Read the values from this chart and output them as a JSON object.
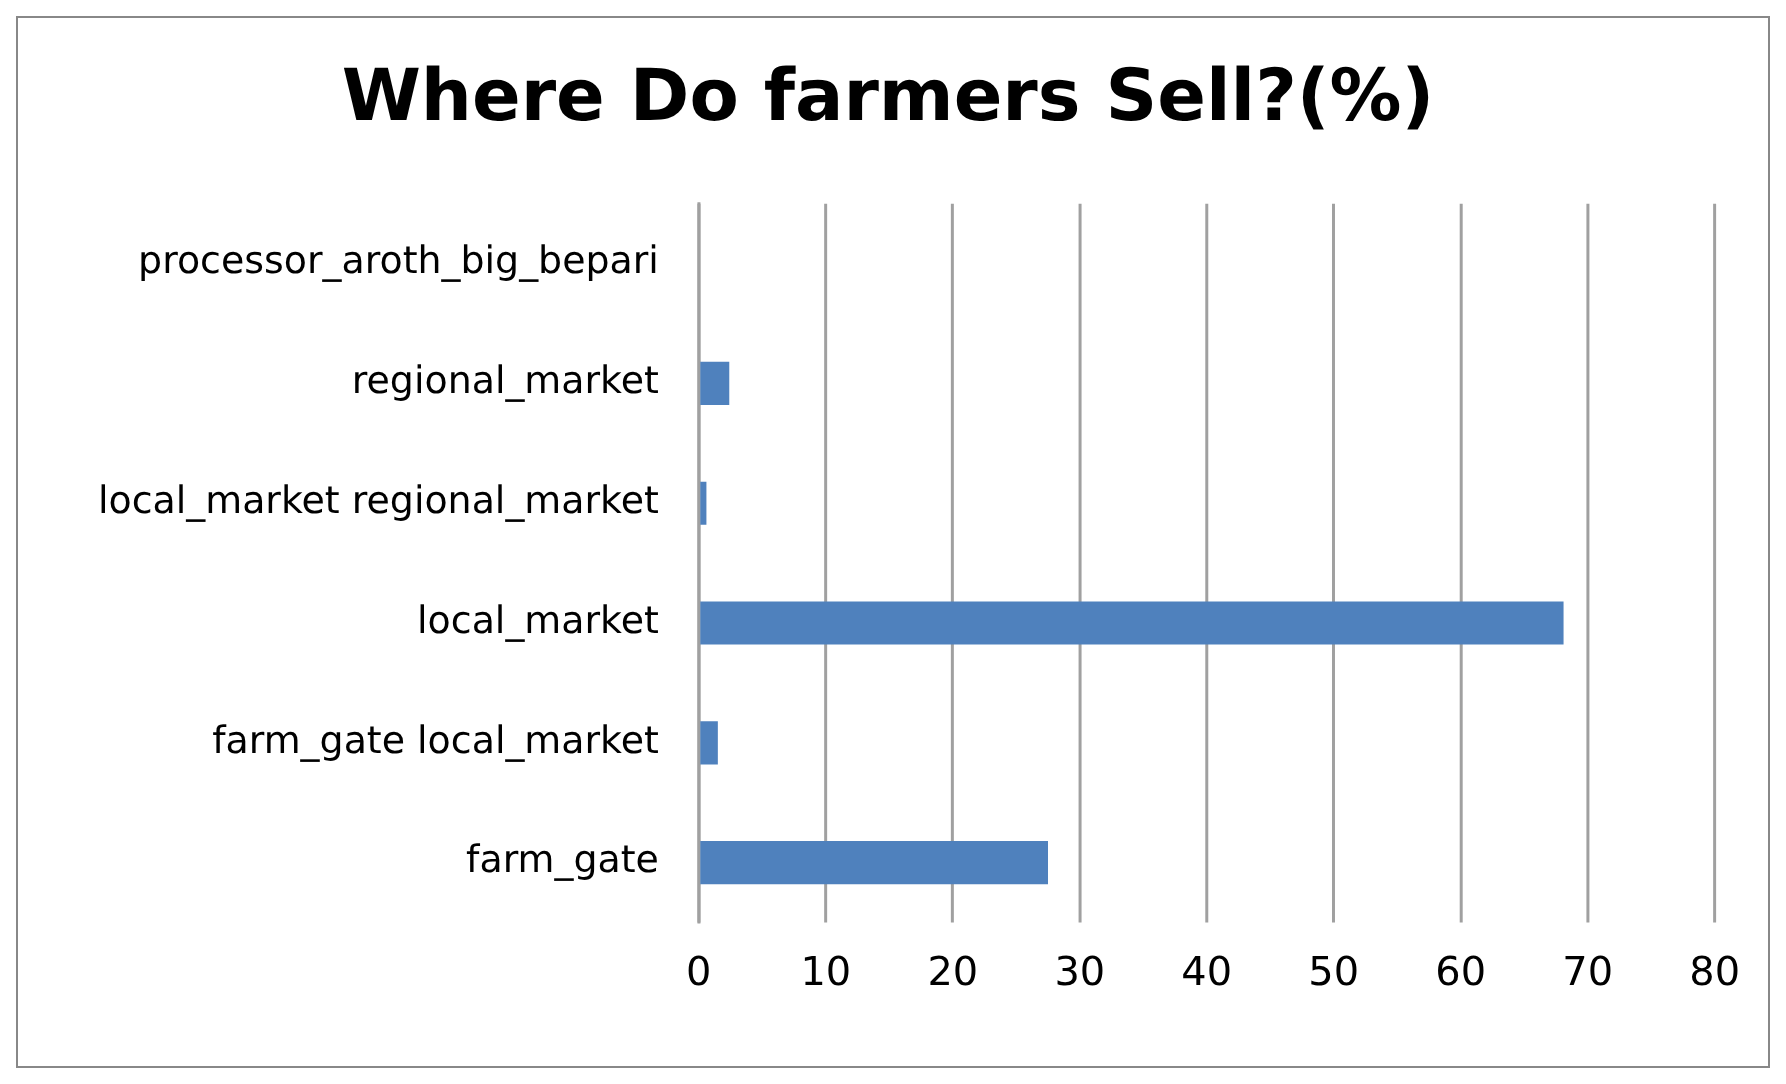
{
  "chart_data": {
    "type": "bar",
    "orientation": "horizontal",
    "title": "Where Do farmers Sell?(%)",
    "categories": [
      "processor_aroth_big_bepari",
      "regional_market",
      "local_market regional_market",
      "local_market",
      "farm_gate local_market",
      "farm_gate"
    ],
    "values": [
      0,
      2.4,
      0.6,
      68.1,
      1.5,
      27.5
    ],
    "color": "#4f81bd",
    "xlim": [
      0,
      80
    ],
    "xticks": [
      0,
      10,
      20,
      30,
      40,
      50,
      60,
      70,
      80
    ],
    "grid": "x",
    "legend": false
  }
}
